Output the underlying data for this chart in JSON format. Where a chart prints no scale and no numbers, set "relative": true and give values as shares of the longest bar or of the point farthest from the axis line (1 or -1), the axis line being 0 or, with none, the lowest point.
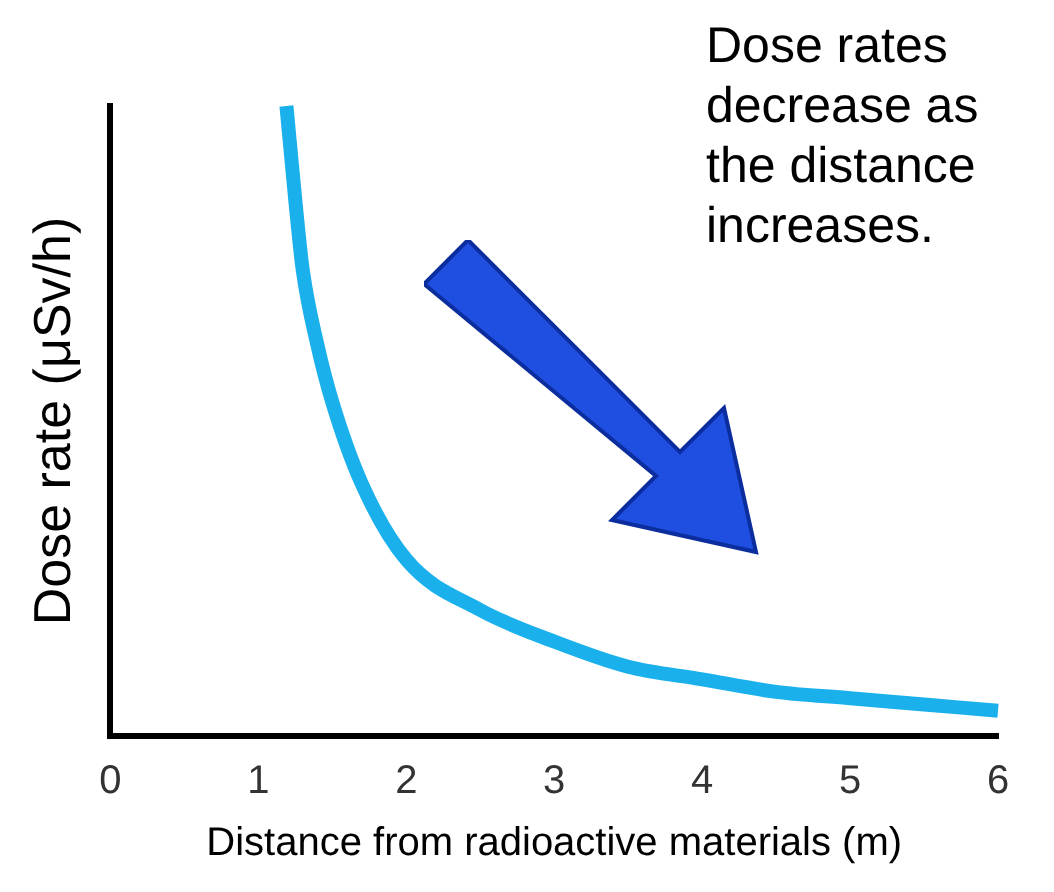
{
  "chart_data": {
    "type": "line",
    "relative": true,
    "xlabel": "Distance from radioactive materials (m)",
    "ylabel": "Dose rate (μSv/h)",
    "annotations": [
      "Dose rates decrease as the distance increases."
    ],
    "series": [
      {
        "color": "#1ab0ec",
        "x": [
          1.19,
          1.25,
          1.3,
          1.4,
          1.5,
          1.7,
          2,
          2.5,
          3,
          3.5,
          4,
          4.5,
          5,
          5.5,
          6
        ],
        "values": [
          1,
          0.85,
          0.74,
          0.62,
          0.53,
          0.4,
          0.28,
          0.2,
          0.15,
          0.11,
          0.09,
          0.07,
          0.06,
          0.05,
          0.04
        ]
      }
    ],
    "xlim": [
      0,
      6
    ],
    "xticks": [
      0,
      1,
      2,
      3,
      4,
      5,
      6
    ],
    "grid": false,
    "legend": false,
    "marker": "none",
    "line_style": "solid",
    "tick_labels": "x"
  }
}
